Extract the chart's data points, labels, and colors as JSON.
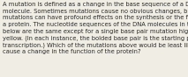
{
  "text": "A mutation is defined as a change in the base sequence of a DNA molecule. Sometimes mutations cause no obvious changes, but other times mutations can have profound effects on the synthesis or the function of a protein. The nucleotide sequences of the DNA molecules in the figure below are the same except for a single base pair mutation highlighted in yellow. (In each instance, the bolded base pair is the starting point of transcription.) Which of the mutations above would be least likely to cause a change in the function of the protein?",
  "background_color": "#f0ede4",
  "text_color": "#2b2b2b",
  "font_size": 4.85,
  "fig_width": 2.13,
  "fig_height": 0.88,
  "dpi": 100
}
